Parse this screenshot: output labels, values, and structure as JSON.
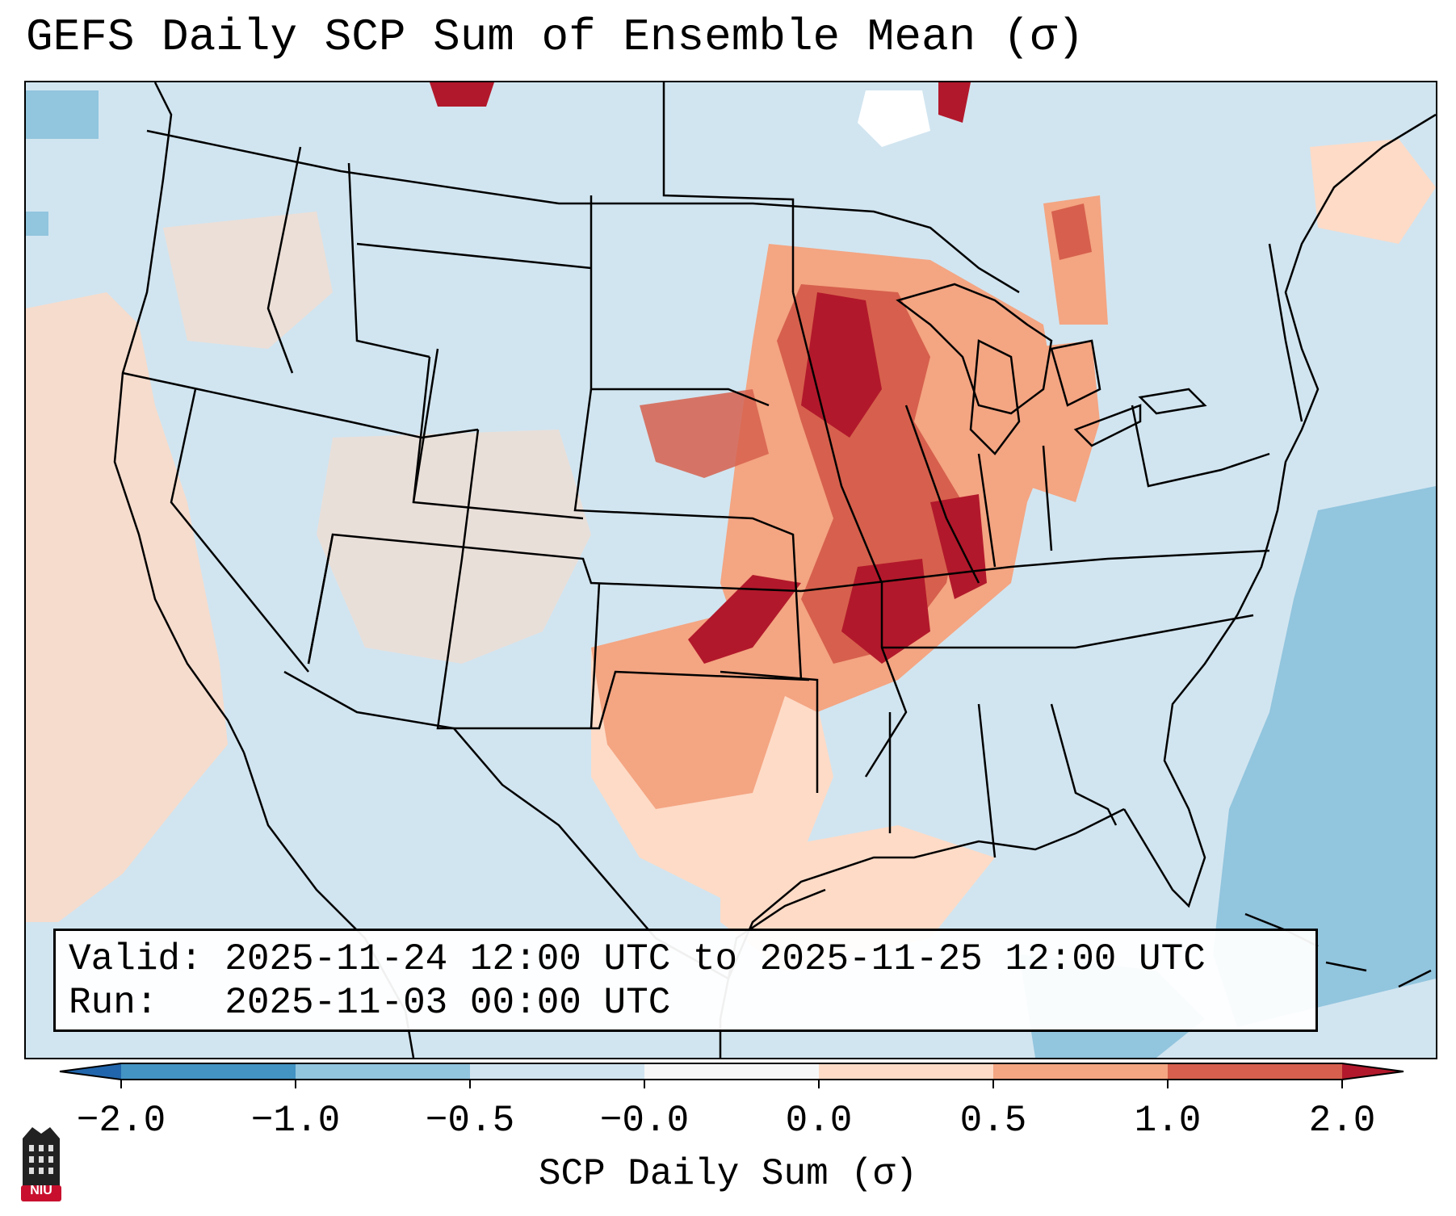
{
  "title": "GEFS Daily SCP Sum of Ensemble Mean (σ)",
  "info": {
    "valid": "Valid: 2025-11-24 12:00 UTC to 2025-11-25 12:00 UTC",
    "run": "Run:   2025-11-03 00:00 UTC"
  },
  "colorbar": {
    "label": "SCP Daily Sum (σ)",
    "ticks": [
      "−2.0",
      "−1.0",
      "−0.5",
      "−0.0",
      "0.0",
      "0.5",
      "1.0",
      "2.0"
    ],
    "colors": [
      "#2166ac",
      "#4393c3",
      "#92c5de",
      "#d1e5f0",
      "#f7f7f7",
      "#fddbc7",
      "#f4a582",
      "#d6604d",
      "#b2182b"
    ]
  },
  "logo": {
    "text": "NIU",
    "color": "#c8102e"
  }
}
